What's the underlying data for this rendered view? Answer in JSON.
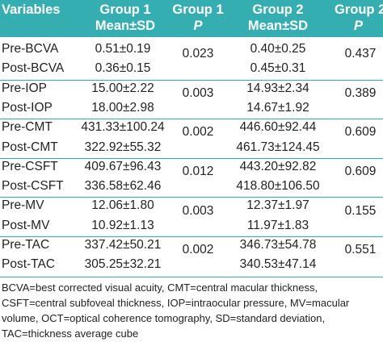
{
  "header": {
    "variables": "Variables",
    "g1_mean_line1": "Group 1",
    "g1_mean_line2": "Mean±SD",
    "g1_p_line1": "Group 1",
    "g1_p_line2": "P",
    "g2_mean_line1": "Group 2",
    "g2_mean_line2": "Mean±SD",
    "g2_p_line1": "Group 2",
    "g2_p_line2": "P"
  },
  "rows": [
    {
      "label": "Pre-BCVA",
      "g1": "0.51±0.19",
      "g1p": "0.023",
      "g2": "0.40±0.25",
      "g2p": "0.437"
    },
    {
      "label": "Post-BCVA",
      "g1": "0.36±0.15",
      "g1p": "",
      "g2": "0.45±0.31",
      "g2p": ""
    },
    {
      "label": "Pre-IOP",
      "g1": "15.00±2.22",
      "g1p": "0.003",
      "g2": "14.93±2.34",
      "g2p": "0.389"
    },
    {
      "label": "Post-IOP",
      "g1": "18.00±2.98",
      "g1p": "",
      "g2": "14.67±1.92",
      "g2p": ""
    },
    {
      "label": "Pre-CMT",
      "g1": "431.33±100.24",
      "g1p": "0.002",
      "g2": "446.60±92.44",
      "g2p": "0.609"
    },
    {
      "label": "Post-CMT",
      "g1": "322.92±55.32",
      "g1p": "",
      "g2": "461.73±124.45",
      "g2p": ""
    },
    {
      "label": "Pre-CSFT",
      "g1": "409.67±96.43",
      "g1p": "0.012",
      "g2": "443.20±92.82",
      "g2p": "0.609"
    },
    {
      "label": "Post-CSFT",
      "g1": "336.58±62.46",
      "g1p": "",
      "g2": "418.80±106.50",
      "g2p": ""
    },
    {
      "label": "Pre-MV",
      "g1": "12.06±1.80",
      "g1p": "0.003",
      "g2": "12.37±1.97",
      "g2p": "0.155"
    },
    {
      "label": "Post-MV",
      "g1": "10.92±1.13",
      "g1p": "",
      "g2": "11.97±1.83",
      "g2p": ""
    },
    {
      "label": "Pre-TAC",
      "g1": "337.42±50.21",
      "g1p": "0.002",
      "g2": "346.73±54.78",
      "g2p": "0.551"
    },
    {
      "label": "Post-TAC",
      "g1": "305.25±32.21",
      "g1p": "",
      "g2": "340.53±47.14",
      "g2p": ""
    }
  ],
  "footnote": "BCVA=best corrected visual acuity, CMT=central macular thickness, CSFT=central subfoveal thickness, IOP=intraocular pressure, MV=macular volume, OCT=optical coherence tomography, SD=standard deviation, TAC=thickness average cube",
  "colors": {
    "header_bg": "#35aeb2",
    "header_text": "#ffffff",
    "body_text": "#222222"
  }
}
